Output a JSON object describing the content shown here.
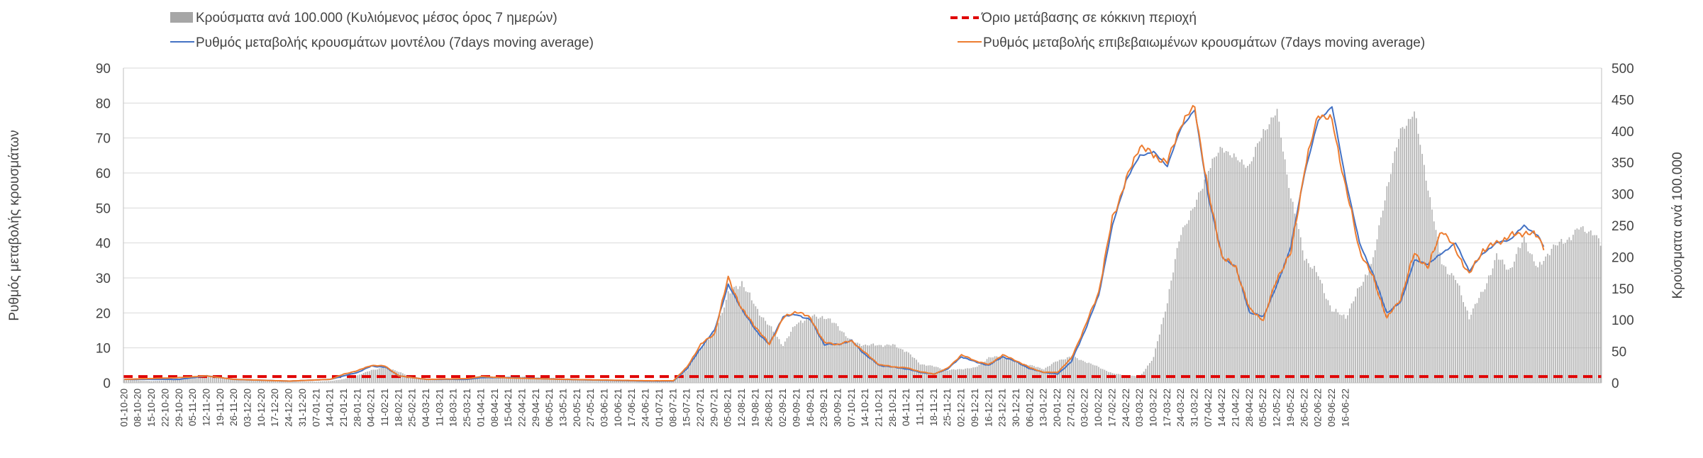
{
  "chart_data": {
    "type": "bar",
    "legend_placement": "top",
    "grid": true,
    "y_left": {
      "label": "Ρυθμός μεταβολής κρουσμάτων",
      "lim": [
        0,
        90
      ],
      "ticks": [
        0,
        10,
        20,
        30,
        40,
        50,
        60,
        70,
        80,
        90
      ]
    },
    "y_right": {
      "label": "Κρούσματα ανά 100.000",
      "lim": [
        0,
        500
      ],
      "ticks": [
        0,
        50,
        100,
        150,
        200,
        250,
        300,
        350,
        400,
        450,
        500
      ]
    },
    "x_tick_labels": [
      "01-10-20",
      "08-10-20",
      "15-10-20",
      "22-10-20",
      "29-10-20",
      "05-11-20",
      "12-11-20",
      "19-11-20",
      "26-11-20",
      "03-12-20",
      "10-12-20",
      "17-12-20",
      "24-12-20",
      "31-12-20",
      "07-01-21",
      "14-01-21",
      "21-01-21",
      "28-01-21",
      "04-02-21",
      "11-02-21",
      "18-02-21",
      "25-02-21",
      "04-03-21",
      "11-03-21",
      "18-03-21",
      "25-03-21",
      "01-04-21",
      "08-04-21",
      "15-04-21",
      "22-04-21",
      "29-04-21",
      "06-05-21",
      "13-05-21",
      "20-05-21",
      "27-05-21",
      "03-06-21",
      "10-06-21",
      "17-06-21",
      "24-06-21",
      "01-07-21",
      "08-07-21",
      "15-07-21",
      "22-07-21",
      "29-07-21",
      "05-08-21",
      "12-08-21",
      "19-08-21",
      "26-08-21",
      "02-09-21",
      "09-09-21",
      "16-09-21",
      "23-09-21",
      "30-09-21",
      "07-10-21",
      "14-10-21",
      "21-10-21",
      "28-10-21",
      "04-11-21",
      "11-11-21",
      "18-11-21",
      "25-11-21",
      "02-12-21",
      "09-12-21",
      "16-12-21",
      "23-12-21",
      "30-12-21",
      "06-01-22",
      "13-01-22",
      "20-01-22",
      "27-01-22",
      "03-02-22",
      "10-02-22",
      "17-02-22",
      "24-02-22",
      "03-03-22",
      "10-03-22",
      "17-03-22",
      "24-03-22",
      "31-03-22",
      "07-04-22",
      "14-04-22",
      "21-04-22",
      "28-04-22",
      "05-05-22",
      "12-05-22",
      "19-05-22",
      "26-05-22",
      "02-06-22",
      "09-06-22",
      "16-06-22"
    ],
    "series": [
      {
        "name": "Κρούσματα ανά 100.000 (Κυλιόμενος μέσος όρος 7 ημερών)",
        "type": "bar",
        "axis": "right",
        "color": "#a6a6a6",
        "keyframes": [
          [
            0,
            6
          ],
          [
            7,
            4
          ],
          [
            14,
            3
          ],
          [
            21,
            4
          ],
          [
            28,
            6
          ],
          [
            35,
            9
          ],
          [
            42,
            10
          ],
          [
            49,
            9
          ],
          [
            56,
            6
          ],
          [
            63,
            5
          ],
          [
            70,
            4
          ],
          [
            77,
            3
          ],
          [
            84,
            2
          ],
          [
            91,
            2
          ],
          [
            98,
            2
          ],
          [
            105,
            3
          ],
          [
            112,
            6
          ],
          [
            119,
            12
          ],
          [
            126,
            20
          ],
          [
            133,
            25
          ],
          [
            140,
            18
          ],
          [
            147,
            8
          ],
          [
            154,
            5
          ],
          [
            161,
            6
          ],
          [
            168,
            7
          ],
          [
            175,
            6
          ],
          [
            182,
            8
          ],
          [
            189,
            10
          ],
          [
            196,
            9
          ],
          [
            203,
            10
          ],
          [
            210,
            9
          ],
          [
            217,
            8
          ],
          [
            224,
            7
          ],
          [
            231,
            6
          ],
          [
            238,
            5
          ],
          [
            245,
            4
          ],
          [
            252,
            3
          ],
          [
            259,
            2
          ],
          [
            266,
            2
          ],
          [
            273,
            2
          ],
          [
            280,
            4
          ],
          [
            287,
            20
          ],
          [
            294,
            55
          ],
          [
            301,
            80
          ],
          [
            308,
            140
          ],
          [
            315,
            160
          ],
          [
            322,
            120
          ],
          [
            329,
            90
          ],
          [
            336,
            60
          ],
          [
            343,
            95
          ],
          [
            350,
            105
          ],
          [
            357,
            105
          ],
          [
            364,
            90
          ],
          [
            371,
            65
          ],
          [
            378,
            60
          ],
          [
            385,
            60
          ],
          [
            392,
            60
          ],
          [
            399,
            50
          ],
          [
            406,
            30
          ],
          [
            413,
            26
          ],
          [
            420,
            20
          ],
          [
            427,
            22
          ],
          [
            434,
            24
          ],
          [
            441,
            40
          ],
          [
            448,
            42
          ],
          [
            455,
            33
          ],
          [
            462,
            28
          ],
          [
            469,
            22
          ],
          [
            476,
            35
          ],
          [
            483,
            42
          ],
          [
            490,
            34
          ],
          [
            497,
            25
          ],
          [
            504,
            15
          ],
          [
            511,
            12
          ],
          [
            518,
            10
          ],
          [
            525,
            40
          ],
          [
            532,
            130
          ],
          [
            539,
            240
          ],
          [
            546,
            280
          ],
          [
            553,
            340
          ],
          [
            560,
            375
          ],
          [
            567,
            355
          ],
          [
            574,
            345
          ],
          [
            581,
            400
          ],
          [
            588,
            430
          ],
          [
            595,
            295
          ],
          [
            602,
            200
          ],
          [
            609,
            170
          ],
          [
            616,
            115
          ],
          [
            623,
            105
          ],
          [
            630,
            150
          ],
          [
            637,
            195
          ],
          [
            644,
            310
          ],
          [
            651,
            400
          ],
          [
            658,
            430
          ],
          [
            665,
            310
          ],
          [
            672,
            190
          ],
          [
            679,
            165
          ],
          [
            686,
            105
          ],
          [
            693,
            145
          ],
          [
            700,
            200
          ],
          [
            707,
            180
          ],
          [
            714,
            230
          ],
          [
            721,
            180
          ],
          [
            728,
            215
          ],
          [
            735,
            225
          ],
          [
            742,
            245
          ],
          [
            749,
            240
          ],
          [
            753,
            220
          ]
        ]
      },
      {
        "name": "Όριο μετάβασης σε κόκκινη περιοχή",
        "type": "line",
        "axis": "right",
        "dashed": true,
        "color": "#e00000",
        "value": 10
      },
      {
        "name": "Ρυθμός μεταβολής κρουσμάτων μοντέλου (7days moving average)",
        "type": "line",
        "axis": "left",
        "color": "#4472c4",
        "keyframes": [
          [
            0,
            1
          ],
          [
            28,
            1
          ],
          [
            42,
            2
          ],
          [
            56,
            1
          ],
          [
            84,
            0.5
          ],
          [
            105,
            1
          ],
          [
            112,
            2
          ],
          [
            119,
            3
          ],
          [
            126,
            4.8
          ],
          [
            133,
            4.5
          ],
          [
            140,
            2
          ],
          [
            154,
            1
          ],
          [
            175,
            1
          ],
          [
            182,
            1.5
          ],
          [
            196,
            1.5
          ],
          [
            224,
            1
          ],
          [
            266,
            0.5
          ],
          [
            280,
            0.5
          ],
          [
            287,
            4
          ],
          [
            294,
            10
          ],
          [
            301,
            15
          ],
          [
            308,
            28
          ],
          [
            315,
            21
          ],
          [
            322,
            15
          ],
          [
            329,
            11
          ],
          [
            336,
            19
          ],
          [
            343,
            19.5
          ],
          [
            350,
            18
          ],
          [
            357,
            11
          ],
          [
            364,
            11
          ],
          [
            371,
            12
          ],
          [
            378,
            8
          ],
          [
            385,
            5
          ],
          [
            392,
            4.5
          ],
          [
            399,
            4
          ],
          [
            406,
            3
          ],
          [
            413,
            2.5
          ],
          [
            420,
            4
          ],
          [
            427,
            7.5
          ],
          [
            434,
            6
          ],
          [
            441,
            5
          ],
          [
            448,
            7.5
          ],
          [
            455,
            6
          ],
          [
            462,
            4
          ],
          [
            469,
            3
          ],
          [
            476,
            2.5
          ],
          [
            483,
            6
          ],
          [
            490,
            15
          ],
          [
            497,
            25
          ],
          [
            504,
            45
          ],
          [
            511,
            58
          ],
          [
            518,
            65
          ],
          [
            525,
            66
          ],
          [
            532,
            62
          ],
          [
            539,
            73
          ],
          [
            546,
            78
          ],
          [
            553,
            53
          ],
          [
            560,
            36
          ],
          [
            567,
            33
          ],
          [
            574,
            20
          ],
          [
            581,
            19
          ],
          [
            588,
            28
          ],
          [
            595,
            39
          ],
          [
            602,
            60
          ],
          [
            609,
            75
          ],
          [
            616,
            79
          ],
          [
            623,
            58
          ],
          [
            630,
            40
          ],
          [
            637,
            31
          ],
          [
            644,
            20
          ],
          [
            651,
            23
          ],
          [
            658,
            35
          ],
          [
            665,
            34
          ],
          [
            672,
            37
          ],
          [
            679,
            40
          ],
          [
            686,
            32
          ],
          [
            693,
            37
          ],
          [
            700,
            40
          ],
          [
            707,
            41
          ],
          [
            714,
            45
          ],
          [
            721,
            42
          ],
          [
            724,
            39
          ]
        ]
      },
      {
        "name": "Ρυθμός μεταβολής επιβεβαιωμένων κρουσμάτων (7days moving average)",
        "type": "line",
        "axis": "left",
        "color": "#ed7d31",
        "keyframes": [
          [
            0,
            1
          ],
          [
            28,
            1.5
          ],
          [
            42,
            2
          ],
          [
            56,
            1
          ],
          [
            84,
            0.5
          ],
          [
            105,
            1
          ],
          [
            112,
            2.5
          ],
          [
            119,
            3.5
          ],
          [
            126,
            5
          ],
          [
            133,
            4.8
          ],
          [
            140,
            2
          ],
          [
            154,
            1
          ],
          [
            175,
            1.2
          ],
          [
            182,
            1.8
          ],
          [
            196,
            1.4
          ],
          [
            224,
            1
          ],
          [
            266,
            0.6
          ],
          [
            280,
            0.6
          ],
          [
            287,
            4.5
          ],
          [
            294,
            11
          ],
          [
            301,
            14
          ],
          [
            308,
            30
          ],
          [
            315,
            21
          ],
          [
            322,
            16
          ],
          [
            329,
            11
          ],
          [
            336,
            18.5
          ],
          [
            343,
            20.5
          ],
          [
            350,
            18.5
          ],
          [
            357,
            11.5
          ],
          [
            364,
            11
          ],
          [
            371,
            12
          ],
          [
            378,
            8.5
          ],
          [
            385,
            5.2
          ],
          [
            392,
            4.6
          ],
          [
            399,
            4.3
          ],
          [
            406,
            3.2
          ],
          [
            413,
            2.5
          ],
          [
            420,
            4.2
          ],
          [
            427,
            8
          ],
          [
            434,
            6.3
          ],
          [
            441,
            5.2
          ],
          [
            448,
            8
          ],
          [
            455,
            6.3
          ],
          [
            462,
            4.3
          ],
          [
            469,
            3
          ],
          [
            476,
            3
          ],
          [
            483,
            7
          ],
          [
            490,
            16
          ],
          [
            497,
            26
          ],
          [
            504,
            47
          ],
          [
            511,
            58
          ],
          [
            518,
            68
          ],
          [
            525,
            65
          ],
          [
            532,
            63
          ],
          [
            539,
            74
          ],
          [
            546,
            79
          ],
          [
            553,
            54
          ],
          [
            560,
            36
          ],
          [
            567,
            33
          ],
          [
            574,
            21
          ],
          [
            581,
            18
          ],
          [
            588,
            30
          ],
          [
            595,
            37
          ],
          [
            602,
            61
          ],
          [
            609,
            77
          ],
          [
            616,
            75
          ],
          [
            623,
            56
          ],
          [
            630,
            38
          ],
          [
            637,
            30
          ],
          [
            644,
            18.5
          ],
          [
            651,
            24
          ],
          [
            658,
            37
          ],
          [
            665,
            33
          ],
          [
            672,
            44
          ],
          [
            679,
            38
          ],
          [
            686,
            31
          ],
          [
            693,
            38
          ],
          [
            700,
            40
          ],
          [
            707,
            42
          ],
          [
            714,
            43
          ],
          [
            721,
            42
          ],
          [
            724,
            39
          ]
        ]
      }
    ]
  }
}
